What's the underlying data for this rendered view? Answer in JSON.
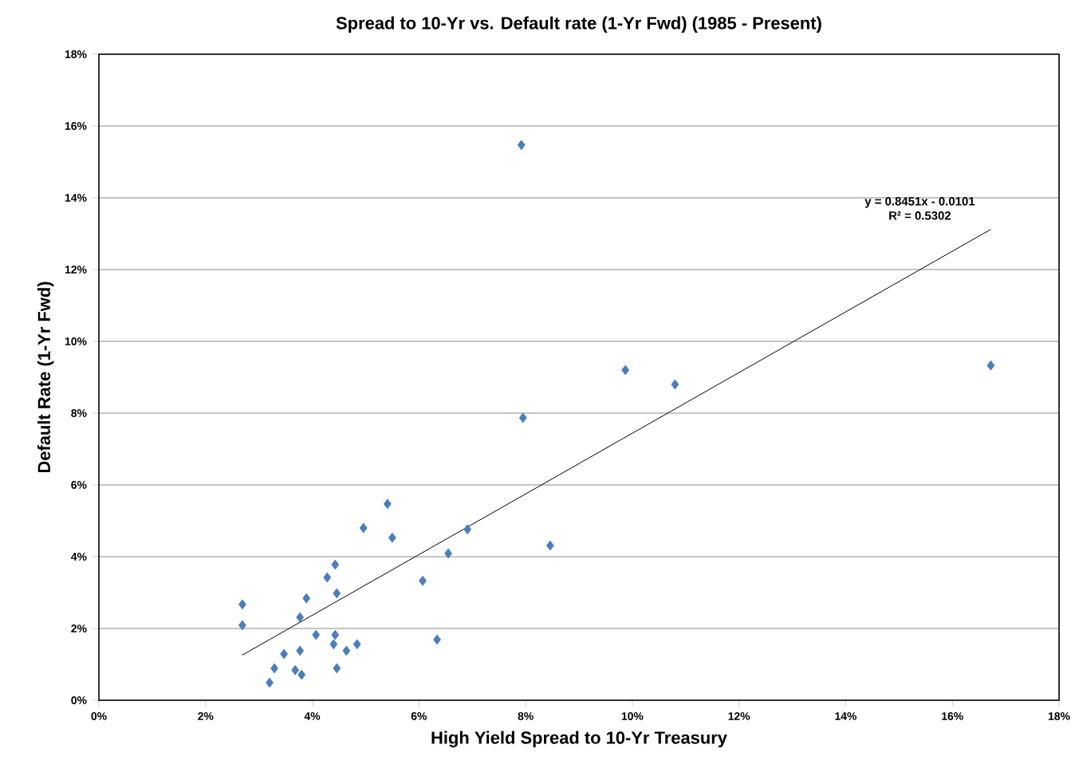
{
  "chart_data": {
    "type": "scatter",
    "title": "Spread to 10-Yr vs. Default rate (1-Yr Fwd) (1985 - Present)",
    "xlabel": "High Yield Spread to 10-Yr Treasury",
    "ylabel": "Default Rate (1-Yr Fwd)",
    "xlim": [
      0,
      18
    ],
    "ylim": [
      0,
      18
    ],
    "xticks": [
      {
        "value": 0,
        "label": "0%"
      },
      {
        "value": 2,
        "label": "2%"
      },
      {
        "value": 4,
        "label": "4%"
      },
      {
        "value": 6,
        "label": "6%"
      },
      {
        "value": 8,
        "label": "8%"
      },
      {
        "value": 10,
        "label": "10%"
      },
      {
        "value": 12,
        "label": "12%"
      },
      {
        "value": 14,
        "label": "14%"
      },
      {
        "value": 16,
        "label": "16%"
      },
      {
        "value": 18,
        "label": "18%"
      }
    ],
    "yticks": [
      {
        "value": 0,
        "label": "0%"
      },
      {
        "value": 2,
        "label": "2%"
      },
      {
        "value": 4,
        "label": "4%"
      },
      {
        "value": 6,
        "label": "6%"
      },
      {
        "value": 8,
        "label": "8%"
      },
      {
        "value": 10,
        "label": "10%"
      },
      {
        "value": 12,
        "label": "12%"
      },
      {
        "value": 14,
        "label": "14%"
      },
      {
        "value": 16,
        "label": "16%"
      },
      {
        "value": 18,
        "label": "18%"
      }
    ],
    "grid": "y",
    "annotations": [
      "y = 0.8451x - 0.0101",
      "R² = 0.5302"
    ],
    "series": [
      {
        "color": "#4a7ebb",
        "marker": "diamond",
        "x": [
          2.69,
          2.69,
          3.2,
          3.29,
          3.47,
          3.68,
          3.8,
          3.77,
          3.77,
          3.89,
          4.07,
          4.28,
          4.43,
          4.43,
          4.4,
          4.46,
          4.46,
          4.64,
          4.84,
          4.96,
          5.41,
          5.5,
          6.07,
          6.34,
          6.55,
          6.91,
          7.92,
          7.95,
          8.46,
          9.87,
          10.8,
          16.72
        ],
        "values": [
          2.67,
          2.09,
          0.49,
          0.89,
          1.29,
          0.84,
          0.71,
          1.38,
          2.31,
          2.84,
          1.82,
          3.42,
          3.78,
          1.82,
          1.56,
          0.89,
          2.98,
          1.38,
          1.56,
          4.8,
          5.47,
          4.53,
          3.33,
          1.69,
          4.09,
          4.76,
          15.47,
          7.87,
          4.31,
          9.2,
          8.8,
          9.33
        ]
      },
      {
        "type": "line",
        "color": "#000000",
        "marker": "none",
        "line_style": "solid",
        "x": [
          2.69,
          16.72
        ],
        "values": [
          1.26,
          13.12
        ]
      }
    ]
  }
}
